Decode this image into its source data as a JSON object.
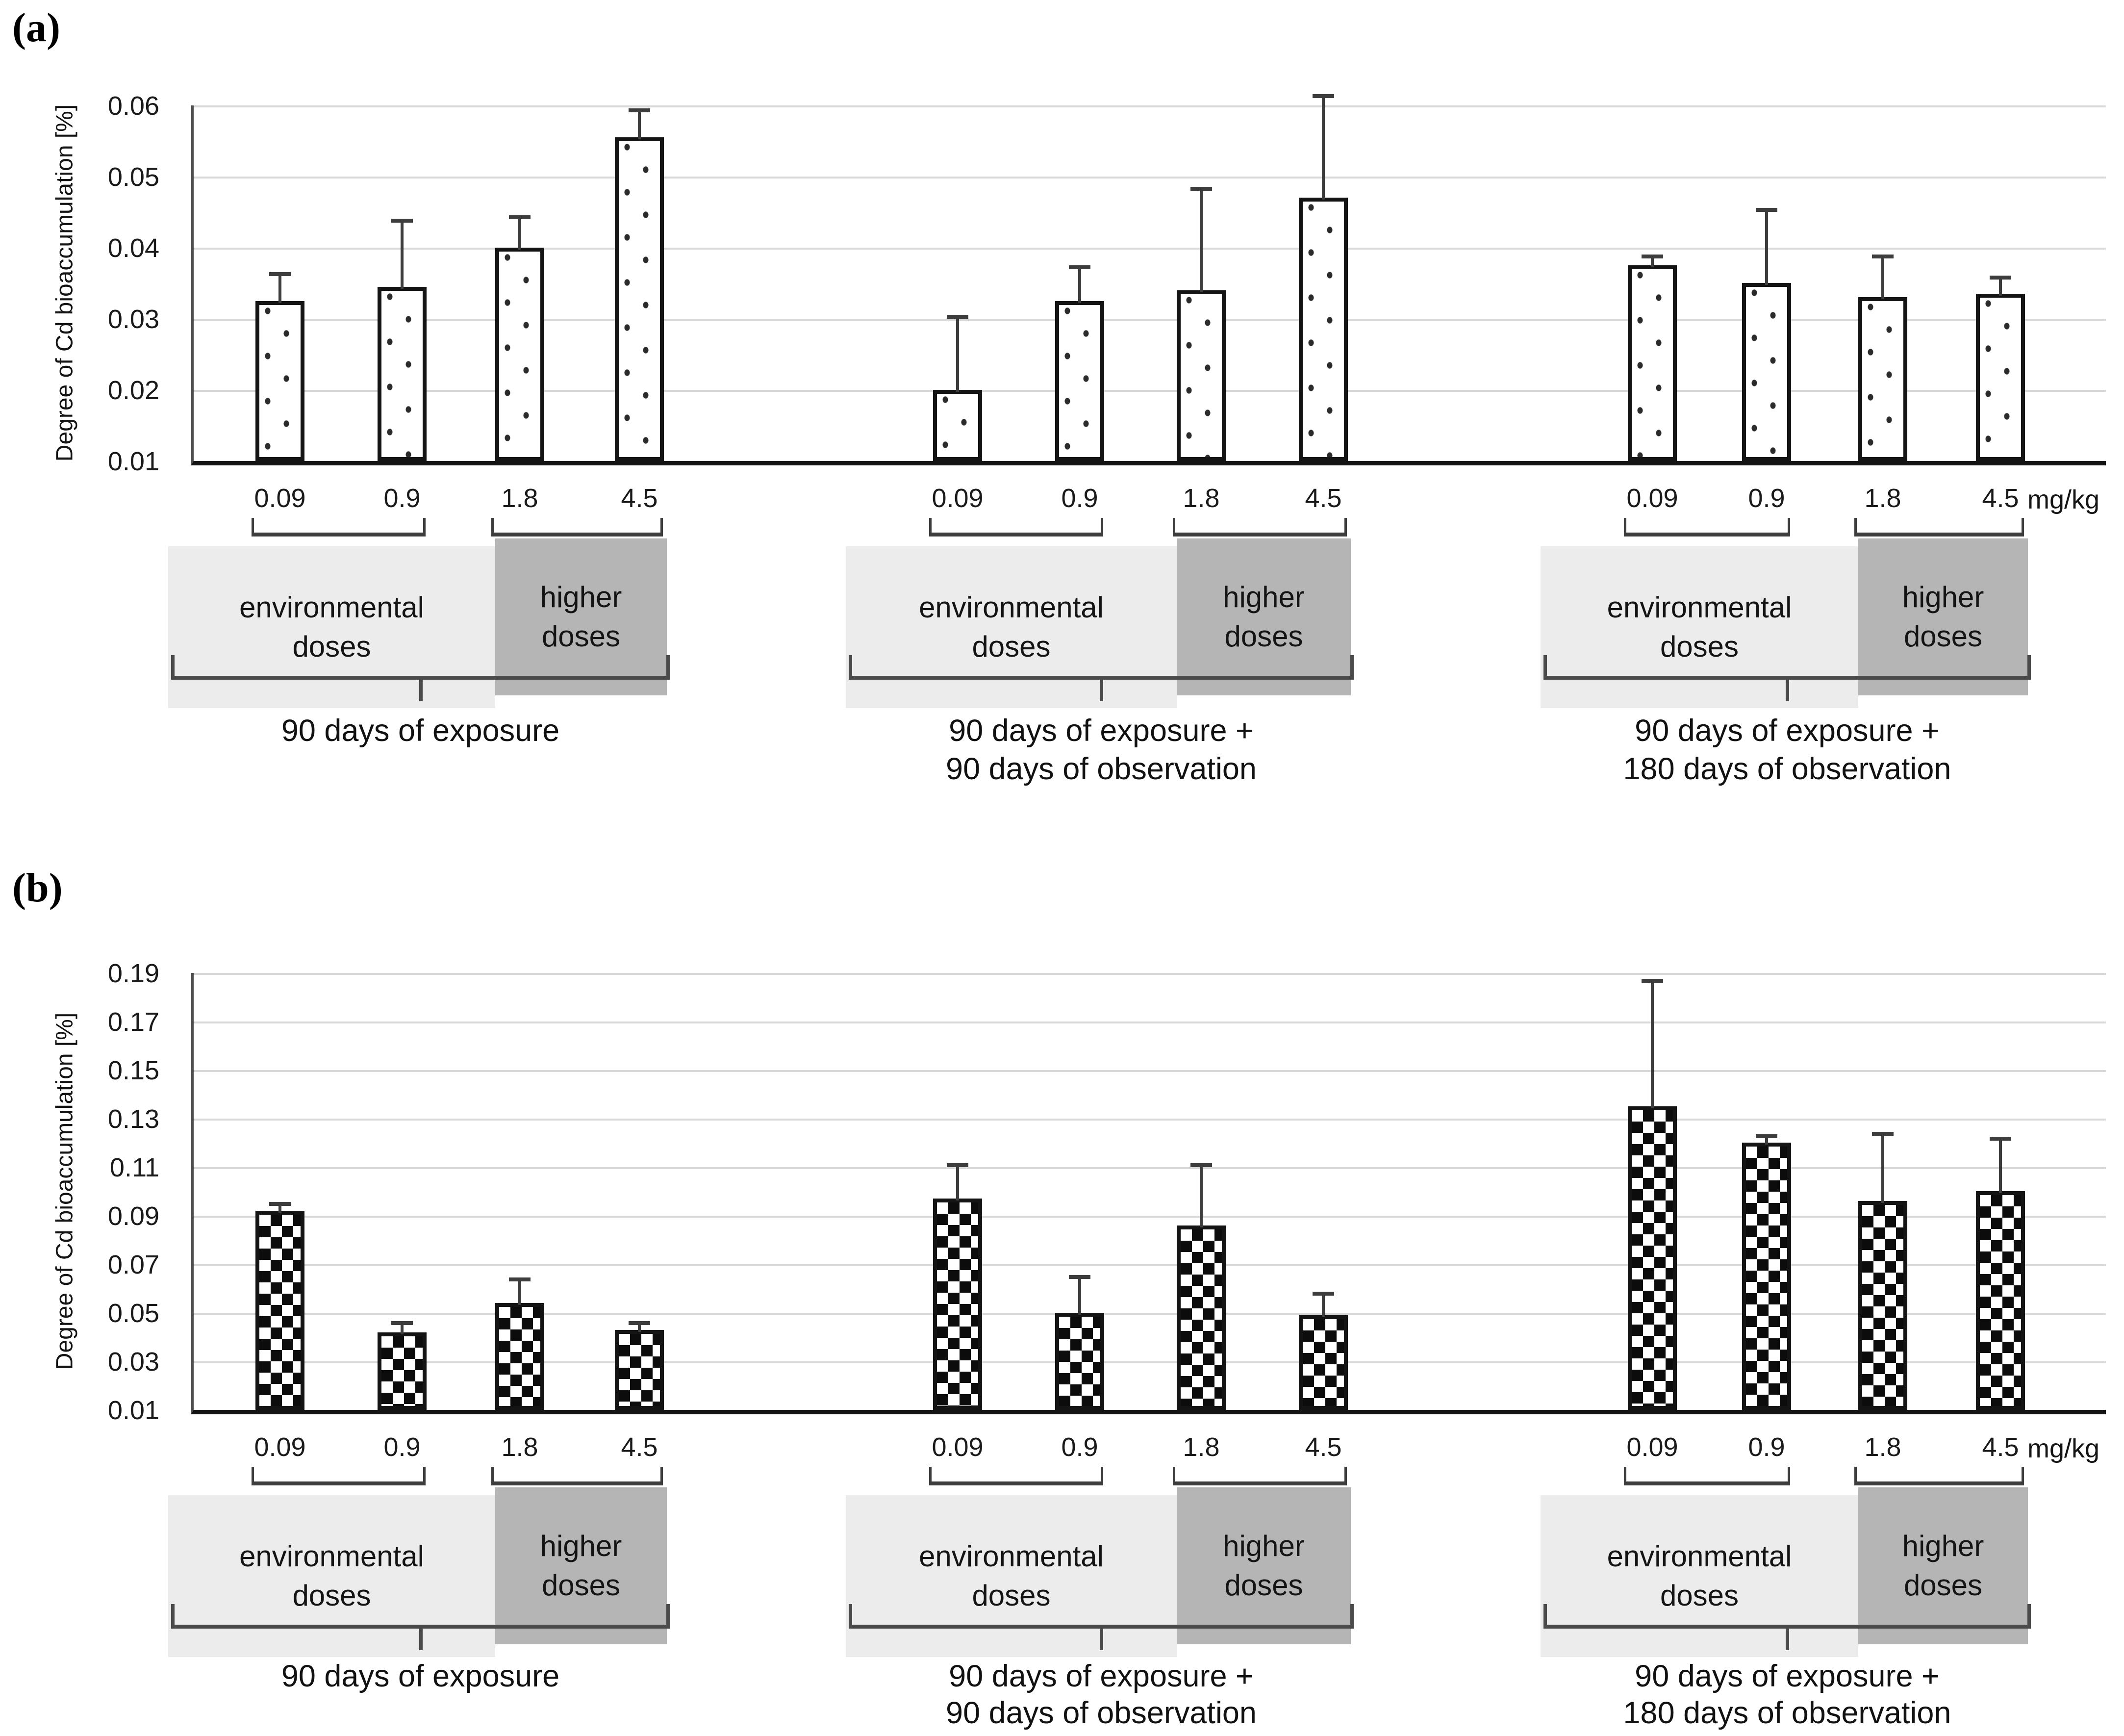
{
  "chart_data": [
    {
      "type": "bar",
      "panel_tag": "(a)",
      "ylabel": "Degree of Cd bioaccumulation [%]",
      "x_unit": "mg/kg",
      "ylim": [
        0.01,
        0.06
      ],
      "yticks": [
        "0.06",
        "0.05",
        "0.04",
        "0.03",
        "0.02",
        "0.01"
      ],
      "grid": true,
      "legend": "none",
      "bar_pattern": "dots",
      "categories": [
        "0.09",
        "0.9",
        "1.8",
        "4.5"
      ],
      "dose_zones": [
        {
          "label": "environmental doses",
          "label_lines": [
            "environmental",
            "doses"
          ],
          "doses": [
            "0.09",
            "0.9"
          ]
        },
        {
          "label": "higher doses",
          "label_lines": [
            "higher",
            "doses"
          ],
          "doses": [
            "1.8",
            "4.5"
          ]
        }
      ],
      "groups": [
        {
          "label": "90 days of exposure",
          "label_lines": [
            "90 days of exposure"
          ],
          "values": [
            0.0325,
            0.0345,
            0.04,
            0.0555
          ],
          "error_up": [
            0.0035,
            0.009,
            0.004,
            0.0035
          ]
        },
        {
          "label": "90 days of exposure + 90 days of observation",
          "label_lines": [
            "90 days of exposure +",
            "90 days of observation"
          ],
          "values": [
            0.02,
            0.0325,
            0.034,
            0.047
          ],
          "error_up": [
            0.01,
            0.0045,
            0.014,
            0.014
          ]
        },
        {
          "label": "90 days of exposure + 180 days of observation",
          "label_lines": [
            "90 days of exposure +",
            "180 days of observation"
          ],
          "values": [
            0.0375,
            0.035,
            0.033,
            0.0335
          ],
          "error_up": [
            0.001,
            0.01,
            0.0055,
            0.002
          ]
        }
      ]
    },
    {
      "type": "bar",
      "panel_tag": "(b)",
      "ylabel": "Degree of Cd bioaccumulation [%]",
      "x_unit": "mg/kg",
      "ylim": [
        0.01,
        0.19
      ],
      "yticks": [
        "0.19",
        "0.17",
        "0.15",
        "0.13",
        "0.11",
        "0.09",
        "0.07",
        "0.05",
        "0.03",
        "0.01"
      ],
      "grid": true,
      "legend": "none",
      "bar_pattern": "checker",
      "categories": [
        "0.09",
        "0.9",
        "1.8",
        "4.5"
      ],
      "dose_zones": [
        {
          "label": "environmental doses",
          "label_lines": [
            "environmental",
            "doses"
          ],
          "doses": [
            "0.09",
            "0.9"
          ]
        },
        {
          "label": "higher doses",
          "label_lines": [
            "higher",
            "doses"
          ],
          "doses": [
            "1.8",
            "4.5"
          ]
        }
      ],
      "groups": [
        {
          "label": "90 days of exposure",
          "label_lines": [
            "90 days of exposure"
          ],
          "values": [
            0.092,
            0.042,
            0.054,
            0.043
          ],
          "error_up": [
            0.002,
            0.003,
            0.009,
            0.002
          ]
        },
        {
          "label": "90 days of exposure + 90 days of observation",
          "label_lines": [
            "90 days of exposure +",
            "90 days of observation"
          ],
          "values": [
            0.097,
            0.05,
            0.086,
            0.049
          ],
          "error_up": [
            0.013,
            0.014,
            0.024,
            0.008
          ]
        },
        {
          "label": "90 days of exposure + 180 days of observation",
          "label_lines": [
            "90 days of exposure +",
            "180 days of observation"
          ],
          "values": [
            0.135,
            0.12,
            0.096,
            0.1
          ],
          "error_up": [
            0.051,
            0.002,
            0.027,
            0.021
          ]
        }
      ]
    }
  ]
}
